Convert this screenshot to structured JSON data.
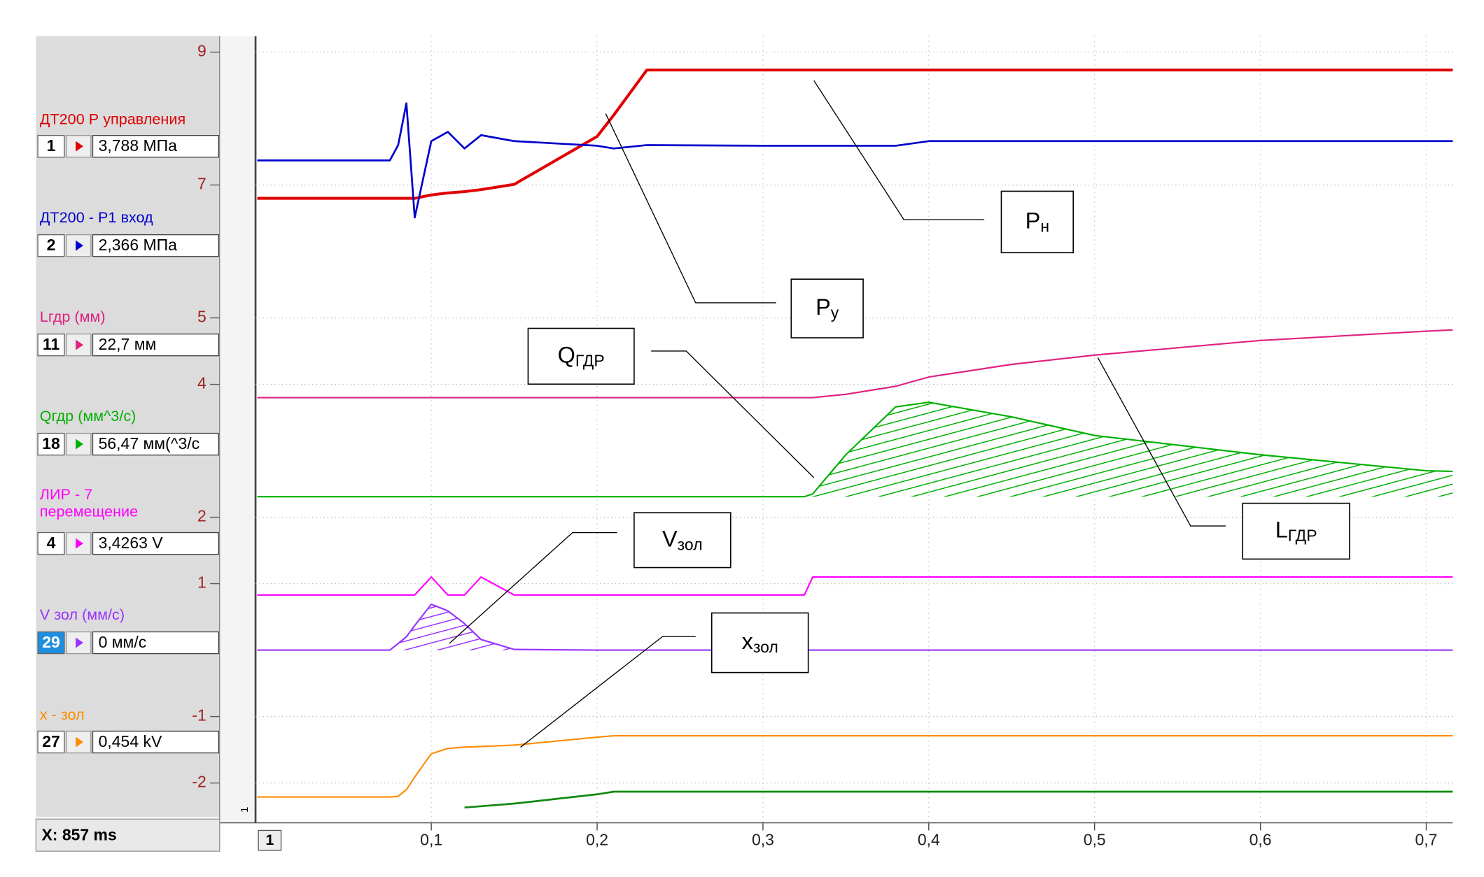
{
  "panel": {
    "cursor": "X: 857 ms",
    "page": "1",
    "marker": "1"
  },
  "chart_data": {
    "type": "line",
    "x": [
      -0.005,
      0.075,
      0.08,
      0.085,
      0.09,
      0.1,
      0.11,
      0.12,
      0.13,
      0.15,
      0.2,
      0.21,
      0.23,
      0.3,
      0.325,
      0.33,
      0.35,
      0.38,
      0.4,
      0.45,
      0.5,
      0.6,
      0.7,
      0.716
    ],
    "xlim": [
      -0.006,
      0.716
    ],
    "xticks": [
      {
        "value": 0.1,
        "label": "0,1"
      },
      {
        "value": 0.2,
        "label": "0,2"
      },
      {
        "value": 0.3,
        "label": "0,3"
      },
      {
        "value": 0.4,
        "label": "0,4"
      },
      {
        "value": 0.5,
        "label": "0,5"
      },
      {
        "value": 0.6,
        "label": "0,6"
      },
      {
        "value": 0.7,
        "label": "0,7"
      }
    ],
    "ylim": [
      -2.6,
      9.24
    ],
    "yticks": [
      9,
      7,
      5,
      4,
      2,
      1,
      -1,
      -2
    ],
    "grid": true,
    "series": [
      {
        "name": "ДТ200 Р управления",
        "channel": "1",
        "reading": "3,788 МПа",
        "color": "#e00000",
        "width": 3,
        "values": [
          6.8,
          6.8,
          6.8,
          6.8,
          6.8,
          6.85,
          6.88,
          6.9,
          6.93,
          7.01,
          7.73,
          8.05,
          8.73,
          8.73,
          8.73,
          8.73,
          8.73,
          8.73,
          8.73,
          8.73,
          8.73,
          8.73,
          8.73,
          8.73
        ]
      },
      {
        "name": "ДТ200 - Р1 вход",
        "channel": "2",
        "reading": "2,366 МПа",
        "color": "#0000cc",
        "width": 2,
        "values": [
          7.37,
          7.37,
          7.6,
          8.23,
          6.51,
          7.66,
          7.8,
          7.55,
          7.75,
          7.66,
          7.59,
          7.55,
          7.6,
          7.59,
          7.59,
          7.59,
          7.59,
          7.59,
          7.66,
          7.66,
          7.66,
          7.66,
          7.66,
          7.66
        ]
      },
      {
        "name": "Lгдр (мм)",
        "channel": "11",
        "reading": "22,7 мм",
        "color": "#e0207f",
        "width": 1.6,
        "values": [
          3.8,
          3.8,
          3.8,
          3.8,
          3.8,
          3.8,
          3.8,
          3.8,
          3.8,
          3.8,
          3.8,
          3.8,
          3.8,
          3.8,
          3.8,
          3.8,
          3.85,
          3.97,
          4.11,
          4.3,
          4.44,
          4.66,
          4.8,
          4.82
        ]
      },
      {
        "name": "Qгдр (мм^3/с)",
        "channel": "18",
        "reading": "56,47 мм(^3/с",
        "color": "#00b000",
        "width": 1.6,
        "hatch": true,
        "values": [
          2.31,
          2.31,
          2.31,
          2.31,
          2.31,
          2.31,
          2.31,
          2.31,
          2.31,
          2.31,
          2.31,
          2.31,
          2.31,
          2.31,
          2.31,
          2.35,
          2.94,
          3.66,
          3.73,
          3.51,
          3.23,
          2.94,
          2.7,
          2.69
        ]
      },
      {
        "name": "ЛИР - 7 перемещение",
        "channel": "4",
        "reading": "3,4263 V",
        "color": "#ff00ff",
        "width": 1.6,
        "values": [
          0.83,
          0.83,
          0.83,
          0.83,
          0.83,
          1.1,
          0.83,
          0.83,
          1.1,
          0.83,
          0.83,
          0.83,
          0.83,
          0.83,
          0.83,
          1.1,
          1.1,
          1.1,
          1.1,
          1.1,
          1.1,
          1.1,
          1.1,
          1.1
        ]
      },
      {
        "name": "V зол (мм/с)",
        "channel": "29",
        "reading": "0 мм/с",
        "color": "#9933ff",
        "width": 1.6,
        "hatch": true,
        "values": [
          0,
          0,
          0.1,
          0.2,
          0.37,
          0.69,
          0.59,
          0.4,
          0.16,
          0.01,
          0,
          0,
          0,
          0,
          0,
          0,
          0,
          0,
          0,
          0,
          0,
          0,
          0,
          0
        ]
      },
      {
        "name": "x - зол",
        "channel": "27",
        "reading": "0,454 kV",
        "color": "#ff8c00",
        "width": 1.6,
        "values": [
          -2.21,
          -2.21,
          -2.2,
          -2.1,
          -1.91,
          -1.56,
          -1.48,
          -1.46,
          -1.45,
          -1.43,
          -1.31,
          -1.29,
          -1.29,
          -1.29,
          -1.29,
          -1.29,
          -1.29,
          -1.29,
          -1.29,
          -1.29,
          -1.29,
          -1.29,
          -1.29,
          -1.29
        ]
      },
      {
        "color": "#118811",
        "width": 2,
        "values": [
          null,
          null,
          null,
          null,
          null,
          null,
          null,
          -2.37,
          -2.35,
          -2.31,
          -2.17,
          -2.13,
          -2.13,
          -2.13,
          -2.13,
          -2.13,
          -2.13,
          -2.13,
          -2.13,
          -2.13,
          -2.13,
          -2.13,
          -2.13,
          -2.13
        ]
      }
    ],
    "annotations": [
      {
        "text": "P",
        "sub": "н"
      },
      {
        "text": "P",
        "sub": "у"
      },
      {
        "text": "Q",
        "sub": "ГДР"
      },
      {
        "text": "L",
        "sub": "ГДР"
      },
      {
        "text": "V",
        "sub": "зол"
      },
      {
        "text": "x",
        "sub": "зол"
      }
    ]
  }
}
